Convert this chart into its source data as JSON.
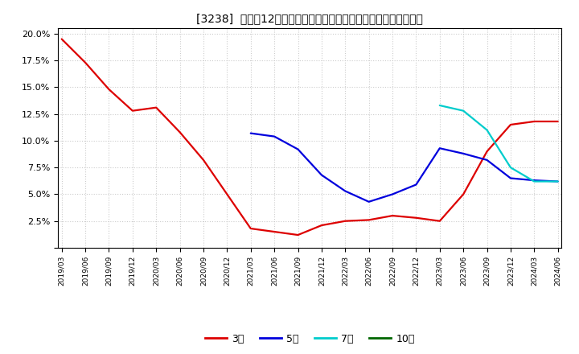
{
  "title": "[3238]  売上高12か月移動合計の対前年同期増減率の平均値の推移",
  "background_color": "#ffffff",
  "grid_color": "#cccccc",
  "ylim": [
    0.0,
    0.205
  ],
  "yticks": [
    0.0,
    0.025,
    0.05,
    0.075,
    0.1,
    0.125,
    0.15,
    0.175,
    0.2
  ],
  "ytick_labels": [
    "",
    "2.5%",
    "5.0%",
    "7.5%",
    "10.0%",
    "12.5%",
    "15.0%",
    "17.5%",
    "20.0%"
  ],
  "series": {
    "3年": {
      "color": "#dd0000",
      "linewidth": 1.6,
      "data": [
        [
          "2019/03",
          0.195
        ],
        [
          "2019/06",
          0.173
        ],
        [
          "2019/09",
          0.148
        ],
        [
          "2019/12",
          0.128
        ],
        [
          "2020/03",
          0.131
        ],
        [
          "2020/06",
          0.108
        ],
        [
          "2020/09",
          0.082
        ],
        [
          "2020/12",
          0.05
        ],
        [
          "2021/03",
          0.018
        ],
        [
          "2021/06",
          0.015
        ],
        [
          "2021/09",
          0.012
        ],
        [
          "2021/12",
          0.021
        ],
        [
          "2022/03",
          0.025
        ],
        [
          "2022/06",
          0.026
        ],
        [
          "2022/09",
          0.03
        ],
        [
          "2022/12",
          0.028
        ],
        [
          "2023/03",
          0.025
        ],
        [
          "2023/06",
          0.05
        ],
        [
          "2023/09",
          0.09
        ],
        [
          "2023/12",
          0.115
        ],
        [
          "2024/03",
          0.118
        ],
        [
          "2024/06",
          0.118
        ]
      ]
    },
    "5年": {
      "color": "#0000dd",
      "linewidth": 1.6,
      "data": [
        [
          "2021/03",
          0.107
        ],
        [
          "2021/06",
          0.104
        ],
        [
          "2021/09",
          0.092
        ],
        [
          "2021/12",
          0.068
        ],
        [
          "2022/03",
          0.053
        ],
        [
          "2022/06",
          0.043
        ],
        [
          "2022/09",
          0.05
        ],
        [
          "2022/12",
          0.059
        ],
        [
          "2023/03",
          0.093
        ],
        [
          "2023/06",
          0.088
        ],
        [
          "2023/09",
          0.082
        ],
        [
          "2023/12",
          0.065
        ],
        [
          "2024/03",
          0.063
        ],
        [
          "2024/06",
          0.062
        ]
      ]
    },
    "7年": {
      "color": "#00cccc",
      "linewidth": 1.6,
      "data": [
        [
          "2023/03",
          0.133
        ],
        [
          "2023/06",
          0.128
        ],
        [
          "2023/09",
          0.11
        ],
        [
          "2023/12",
          0.075
        ],
        [
          "2024/03",
          0.062
        ],
        [
          "2024/06",
          0.062
        ]
      ]
    },
    "10年": {
      "color": "#006600",
      "linewidth": 1.6,
      "data": []
    }
  },
  "legend_labels": [
    "3年",
    "5年",
    "7年",
    "10年"
  ],
  "legend_colors": [
    "#dd0000",
    "#0000dd",
    "#00cccc",
    "#006600"
  ],
  "xtick_labels": [
    "2019/03",
    "2019/06",
    "2019/09",
    "2019/12",
    "2020/03",
    "2020/06",
    "2020/09",
    "2020/12",
    "2021/03",
    "2021/06",
    "2021/09",
    "2021/12",
    "2022/03",
    "2022/06",
    "2022/09",
    "2022/12",
    "2023/03",
    "2023/06",
    "2023/09",
    "2023/12",
    "2024/03",
    "2024/06"
  ]
}
